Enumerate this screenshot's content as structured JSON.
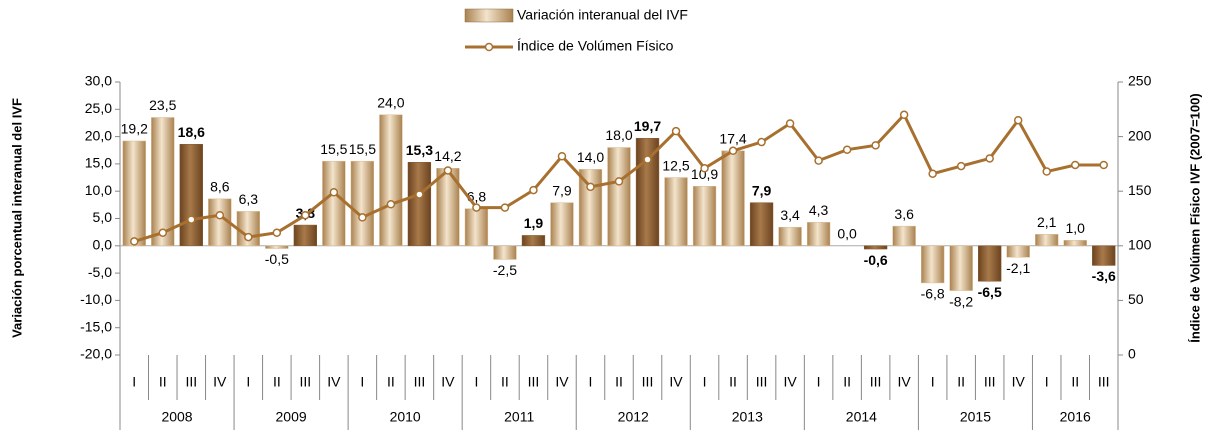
{
  "chart_data": {
    "type": "bar_line",
    "y_label": "Variación porcentual interanual del IVF",
    "y2_label": "Índice de Volúmen Físico IVF (2007=100)",
    "groups": [
      {
        "label": "2008",
        "categories": [
          "I",
          "II",
          "III",
          "IV"
        ]
      },
      {
        "label": "2009",
        "categories": [
          "I",
          "II",
          "III",
          "IV"
        ]
      },
      {
        "label": "2010",
        "categories": [
          "I",
          "II",
          "III",
          "IV"
        ]
      },
      {
        "label": "2011",
        "categories": [
          "I",
          "II",
          "III",
          "IV"
        ]
      },
      {
        "label": "2012",
        "categories": [
          "I",
          "II",
          "III",
          "IV"
        ]
      },
      {
        "label": "2013",
        "categories": [
          "I",
          "II",
          "III",
          "IV"
        ]
      },
      {
        "label": "2014",
        "categories": [
          "I",
          "II",
          "III",
          "IV"
        ]
      },
      {
        "label": "2015",
        "categories": [
          "I",
          "II",
          "III",
          "IV"
        ]
      },
      {
        "label": "2016",
        "categories": [
          "I",
          "II",
          "III"
        ]
      }
    ],
    "ylim": [
      -20,
      30
    ],
    "yticks": [
      {
        "value": -20,
        "label": "-20,0"
      },
      {
        "value": -15,
        "label": "-15,0"
      },
      {
        "value": -10,
        "label": "-10,0"
      },
      {
        "value": -5,
        "label": "-5,0"
      },
      {
        "value": 0,
        "label": "0,0"
      },
      {
        "value": 5,
        "label": "5,0"
      },
      {
        "value": 10,
        "label": "10,0"
      },
      {
        "value": 15,
        "label": "15,0"
      },
      {
        "value": 20,
        "label": "20,0"
      },
      {
        "value": 25,
        "label": "25,0"
      },
      {
        "value": 30,
        "label": "30,0"
      }
    ],
    "y2lim": [
      0,
      250
    ],
    "y2ticks": [
      0,
      50,
      100,
      150,
      200,
      250
    ],
    "series": [
      {
        "name": "Variación interanual del IVF",
        "type": "bar",
        "color": "#d9bc92",
        "highlight_color": "#8a5a2c",
        "values": [
          19.2,
          23.5,
          18.6,
          8.6,
          6.3,
          -0.5,
          3.8,
          15.5,
          15.5,
          24.0,
          15.3,
          14.2,
          6.8,
          -2.5,
          1.9,
          7.9,
          14.0,
          18.0,
          19.7,
          12.5,
          10.9,
          17.4,
          7.9,
          3.4,
          4.3,
          0.0,
          -0.6,
          3.6,
          -6.8,
          -8.2,
          -6.5,
          -2.1,
          2.1,
          1.0,
          -3.6
        ],
        "value_labels": [
          "19,2",
          "23,5",
          "18,6",
          "8,6",
          "6,3",
          "-0,5",
          "3,8",
          "15,5",
          "15,5",
          "24,0",
          "15,3",
          "14,2",
          "6,8",
          "-2,5",
          "1,9",
          "7,9",
          "14,0",
          "18,0",
          "19,7",
          "12,5",
          "10,9",
          "17,4",
          "7,9",
          "3,4",
          "4,3",
          "0,0",
          "-0,6",
          "3,6",
          "-6,8",
          "-8,2",
          "-6,5",
          "-2,1",
          "2,1",
          "1,0",
          "-3,6"
        ]
      },
      {
        "name": "Índice de Volúmen Físico",
        "type": "line",
        "axis": "y2",
        "color": "#a8702f",
        "values": [
          104,
          112,
          124,
          128,
          108,
          112,
          128,
          149,
          126,
          138,
          147,
          169,
          135,
          135,
          151,
          182,
          154,
          159,
          179,
          205,
          171,
          187,
          195,
          212,
          178,
          188,
          192,
          220,
          166,
          173,
          180,
          215,
          168,
          174,
          174
        ]
      }
    ]
  }
}
